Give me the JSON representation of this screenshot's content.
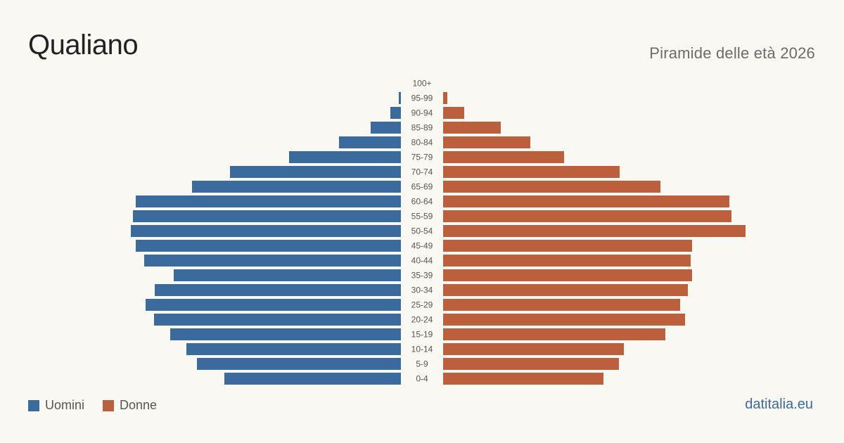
{
  "header": {
    "title": "Qualiano",
    "subtitle": "Piramide delle età 2026"
  },
  "legend": {
    "male_label": "Uomini",
    "female_label": "Donne"
  },
  "footer": {
    "source": "datitalia.eu"
  },
  "colors": {
    "male": "#3a6b9c",
    "female": "#bc5f3c"
  },
  "chart_data": {
    "type": "bar",
    "orientation": "horizontal",
    "title": "Piramide delle età 2026",
    "categories": [
      "100+",
      "95-99",
      "90-94",
      "85-89",
      "80-84",
      "75-79",
      "70-74",
      "65-69",
      "60-64",
      "55-59",
      "50-54",
      "45-49",
      "40-44",
      "35-39",
      "30-34",
      "25-29",
      "20-24",
      "15-19",
      "10-14",
      "5-9",
      "0-4"
    ],
    "series": [
      {
        "name": "Uomini",
        "values": [
          0,
          3,
          15,
          43,
          88,
          159,
          243,
          297,
          377,
          381,
          384,
          377,
          365,
          323,
          350,
          363,
          351,
          328,
          305,
          290,
          251
        ]
      },
      {
        "name": "Donne",
        "values": [
          0,
          6,
          30,
          82,
          124,
          172,
          251,
          309,
          407,
          410,
          430,
          354,
          352,
          354,
          348,
          337,
          344,
          316,
          257,
          250,
          228
        ]
      }
    ],
    "xlim": [
      0,
      440
    ],
    "grid": false,
    "legend_position": "bottom-left"
  }
}
